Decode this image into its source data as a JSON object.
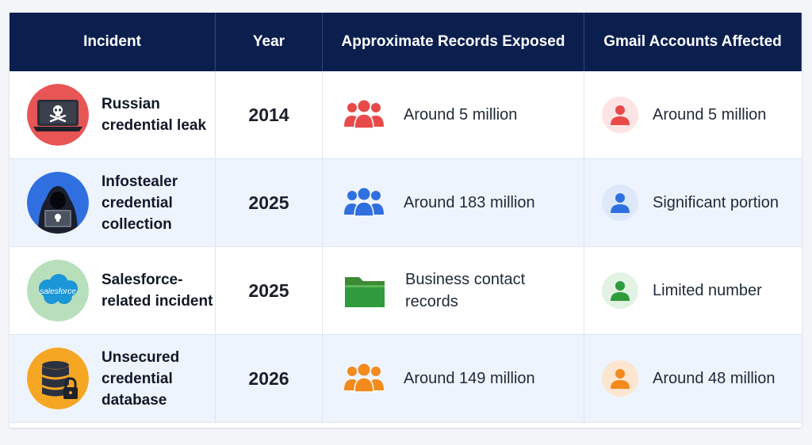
{
  "table": {
    "headers": [
      "Incident",
      "Year",
      "Approximate Records Exposed",
      "Gmail Accounts Affected"
    ],
    "rows": [
      {
        "incident": "Russian\ncredential leak",
        "year": "2014",
        "records": "Around 5 million",
        "gmail": "Around 5 million",
        "incident_icon": "laptop-skull-icon",
        "records_icon": "people-group-icon",
        "gmail_icon": "user-icon",
        "color": "#e84a4a",
        "tint": "#fde3e3"
      },
      {
        "incident": "Infostealer\ncredential\ncollection",
        "year": "2025",
        "records": "Around 183 million",
        "gmail": "Significant portion",
        "incident_icon": "hooded-hacker-icon",
        "records_icon": "people-group-icon",
        "gmail_icon": "user-icon",
        "color": "#2f6fe0",
        "tint": "#dde9fb"
      },
      {
        "incident": "Salesforce-\nrelated incident",
        "year": "2025",
        "records": "Business contact\nrecords",
        "gmail": "Limited number",
        "incident_icon": "salesforce-cloud-icon",
        "incident_icon_text": "salesforce",
        "records_icon": "folder-icon",
        "gmail_icon": "user-icon",
        "color": "#2e9b3c",
        "tint": "#e2f2e3"
      },
      {
        "incident": "Unsecured\ncredential\ndatabase",
        "year": "2026",
        "records": "Around 149 million",
        "gmail": "Around 48 million",
        "incident_icon": "database-lock-icon",
        "records_icon": "people-group-icon",
        "gmail_icon": "user-icon",
        "color": "#f28a1c",
        "tint": "#fde6cf"
      }
    ]
  }
}
